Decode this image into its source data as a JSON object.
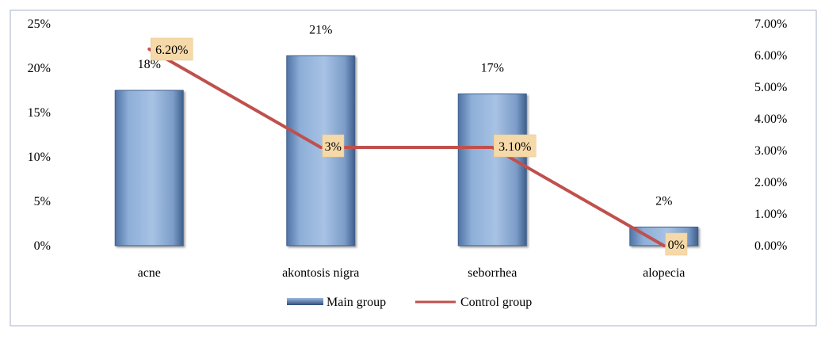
{
  "chart_data": {
    "type": "bar",
    "categories": [
      "acne",
      "akontosis nigra",
      "seborrhea",
      "alopecia"
    ],
    "series": [
      {
        "name": "Main group",
        "type": "bar",
        "axis": "left",
        "values": [
          17.5,
          21.4,
          17.1,
          2.1
        ],
        "labels": [
          "18%",
          "21%",
          "17%",
          "2%"
        ]
      },
      {
        "name": "Control group",
        "type": "line",
        "axis": "right",
        "values": [
          6.2,
          3.1,
          3.1,
          0
        ],
        "labels": [
          "6.20%",
          "3%",
          "3.10%",
          "0%"
        ]
      }
    ],
    "y_left": {
      "ylim": [
        0,
        25
      ],
      "ticks": [
        0,
        5,
        10,
        15,
        20,
        25
      ],
      "tick_labels": [
        "0%",
        "5%",
        "10%",
        "15%",
        "20%",
        "25%"
      ]
    },
    "y_right": {
      "ylim": [
        0,
        7
      ],
      "ticks": [
        0,
        1,
        2,
        3,
        4,
        5,
        6,
        7
      ],
      "tick_labels": [
        "0.00%",
        "1.00%",
        "2.00%",
        "3.00%",
        "4.00%",
        "5.00%",
        "6.00%",
        "7.00%"
      ]
    },
    "grid": false,
    "legend_position": "bottom",
    "colors": {
      "bar_fill": "#8EAFD8",
      "bar_edge": "#3F5F8C",
      "line": "#C0504D",
      "label_box": "#F5D9A8"
    }
  }
}
